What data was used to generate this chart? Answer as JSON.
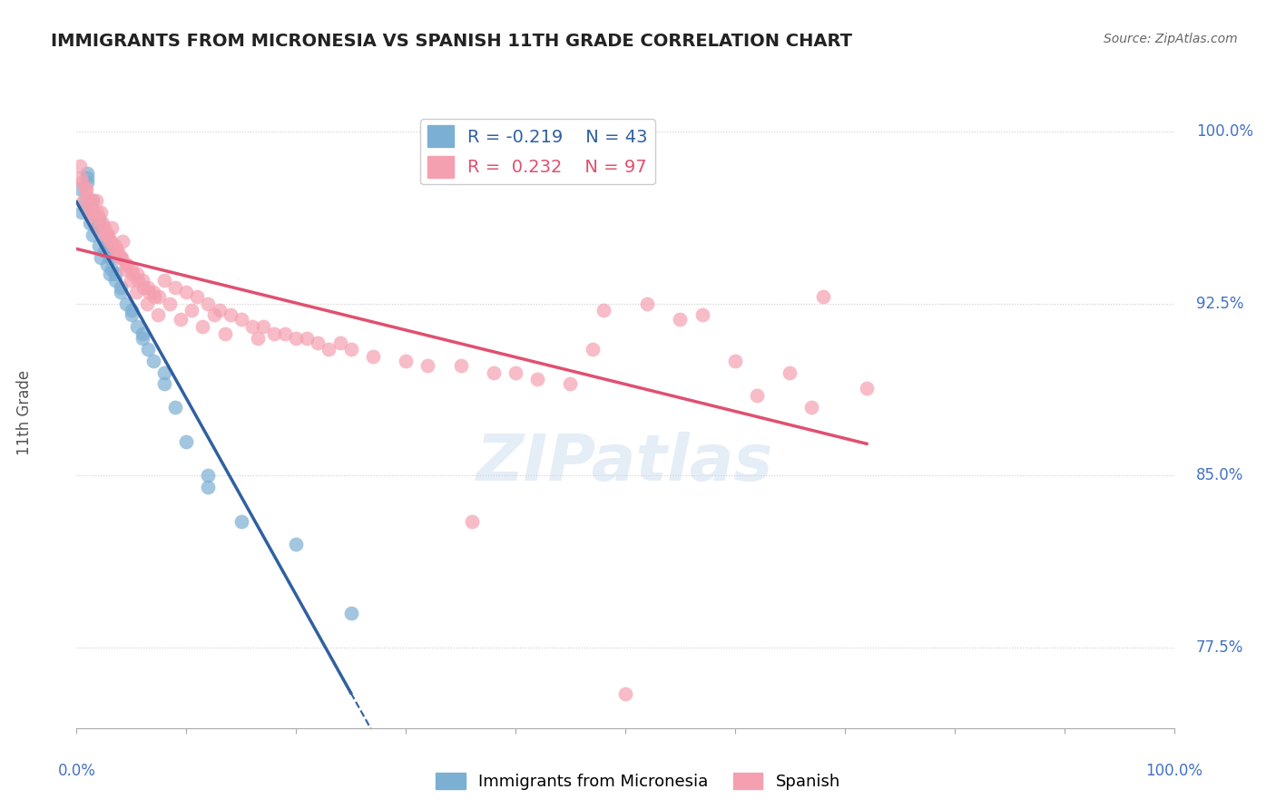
{
  "title": "IMMIGRANTS FROM MICRONESIA VS SPANISH 11TH GRADE CORRELATION CHART",
  "source": "Source: ZipAtlas.com",
  "ylabel": "11th Grade",
  "ylabel_right_ticks": [
    77.5,
    85.0,
    92.5,
    100.0
  ],
  "ylabel_right_labels": [
    "77.5%",
    "85.0%",
    "92.5%",
    "100.0%"
  ],
  "legend_blue_r": "-0.219",
  "legend_blue_n": "43",
  "legend_pink_r": "0.232",
  "legend_pink_n": "97",
  "blue_color": "#7BAFD4",
  "pink_color": "#F4A0B0",
  "blue_line_color": "#3060A0",
  "pink_line_color": "#E05070",
  "blue_x": [
    0.3,
    0.5,
    0.8,
    1.0,
    1.0,
    1.2,
    1.5,
    1.5,
    1.8,
    2.0,
    2.0,
    2.2,
    2.5,
    2.8,
    3.0,
    3.0,
    3.2,
    3.5,
    4.0,
    4.5,
    5.0,
    5.5,
    6.0,
    6.5,
    7.0,
    8.0,
    9.0,
    10.0,
    12.0,
    15.0,
    20.0,
    25.0,
    1.0,
    1.5,
    2.0,
    2.5,
    3.0,
    3.5,
    4.0,
    5.0,
    6.0,
    8.0,
    12.0
  ],
  "blue_y": [
    97.5,
    96.5,
    97.0,
    97.8,
    98.2,
    96.0,
    95.5,
    96.5,
    95.8,
    95.0,
    96.0,
    94.5,
    94.8,
    94.2,
    93.8,
    95.0,
    94.0,
    93.5,
    93.0,
    92.5,
    92.0,
    91.5,
    91.0,
    90.5,
    90.0,
    89.0,
    88.0,
    86.5,
    84.5,
    83.0,
    82.0,
    79.0,
    98.0,
    97.0,
    96.2,
    95.2,
    94.5,
    93.8,
    93.2,
    92.2,
    91.2,
    89.5,
    85.0
  ],
  "pink_x": [
    0.3,
    0.5,
    0.8,
    1.0,
    1.2,
    1.5,
    1.8,
    2.0,
    2.2,
    2.5,
    2.8,
    3.0,
    3.2,
    3.5,
    3.8,
    4.0,
    4.2,
    4.5,
    5.0,
    5.5,
    6.0,
    6.5,
    7.0,
    7.5,
    8.0,
    9.0,
    10.0,
    11.0,
    12.0,
    13.0,
    14.0,
    15.0,
    16.0,
    18.0,
    20.0,
    22.0,
    25.0,
    27.0,
    30.0,
    35.0,
    38.0,
    42.0,
    45.0,
    48.0,
    52.0,
    55.0,
    60.0,
    65.0,
    68.0,
    72.0,
    0.6,
    1.1,
    1.6,
    2.1,
    2.6,
    3.1,
    3.6,
    4.1,
    4.6,
    5.1,
    5.6,
    6.1,
    6.6,
    7.1,
    8.5,
    10.5,
    12.5,
    17.0,
    19.0,
    21.0,
    24.0,
    0.4,
    0.9,
    1.4,
    1.9,
    2.4,
    2.9,
    3.4,
    3.9,
    4.4,
    4.9,
    5.4,
    6.4,
    7.4,
    9.5,
    11.5,
    13.5,
    16.5,
    23.0,
    32.0,
    40.0,
    50.0,
    57.0,
    62.0,
    67.0,
    47.0,
    36.0
  ],
  "pink_y": [
    98.5,
    97.8,
    97.5,
    97.2,
    96.8,
    96.5,
    97.0,
    96.2,
    96.5,
    95.8,
    95.5,
    95.2,
    95.8,
    95.0,
    94.8,
    94.5,
    95.2,
    94.2,
    94.0,
    93.8,
    93.5,
    93.2,
    93.0,
    92.8,
    93.5,
    93.2,
    93.0,
    92.8,
    92.5,
    92.2,
    92.0,
    91.8,
    91.5,
    91.2,
    91.0,
    90.8,
    90.5,
    90.2,
    90.0,
    89.8,
    89.5,
    89.2,
    89.0,
    92.2,
    92.5,
    91.8,
    90.0,
    89.5,
    92.8,
    88.8,
    97.0,
    96.5,
    96.2,
    95.8,
    95.5,
    95.2,
    94.8,
    94.5,
    94.2,
    93.8,
    93.5,
    93.2,
    93.0,
    92.8,
    92.5,
    92.2,
    92.0,
    91.5,
    91.2,
    91.0,
    90.8,
    98.0,
    97.5,
    97.0,
    96.5,
    96.0,
    95.5,
    95.0,
    94.5,
    94.0,
    93.5,
    93.0,
    92.5,
    92.0,
    91.8,
    91.5,
    91.2,
    91.0,
    90.5,
    89.8,
    89.5,
    75.5,
    92.0,
    88.5,
    88.0,
    90.5,
    83.0
  ],
  "ylim": [
    74,
    101.5
  ],
  "xlim": [
    0,
    100
  ]
}
